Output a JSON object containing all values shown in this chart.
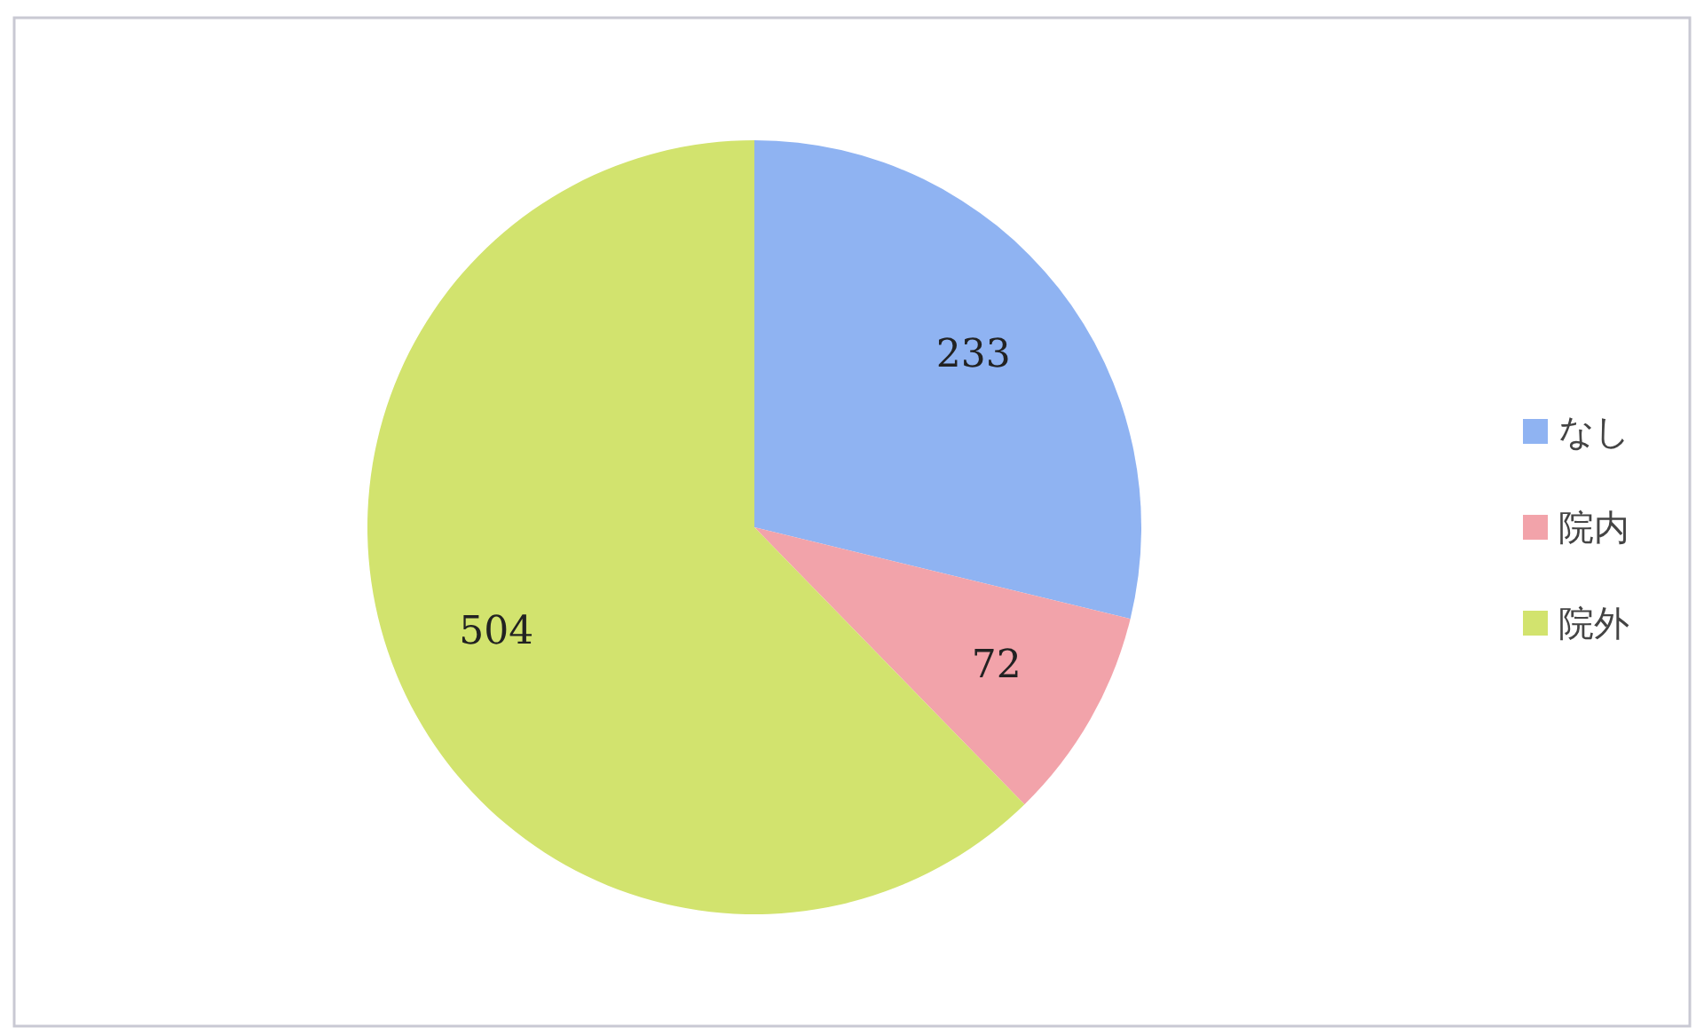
{
  "chart_data": {
    "type": "pie",
    "categories": [
      "なし",
      "院内",
      "院外"
    ],
    "values": [
      233,
      72,
      504
    ],
    "colors": [
      "#8fb3f2",
      "#f2a3aa",
      "#d2e36e"
    ],
    "data_labels": true,
    "legend": "right"
  }
}
